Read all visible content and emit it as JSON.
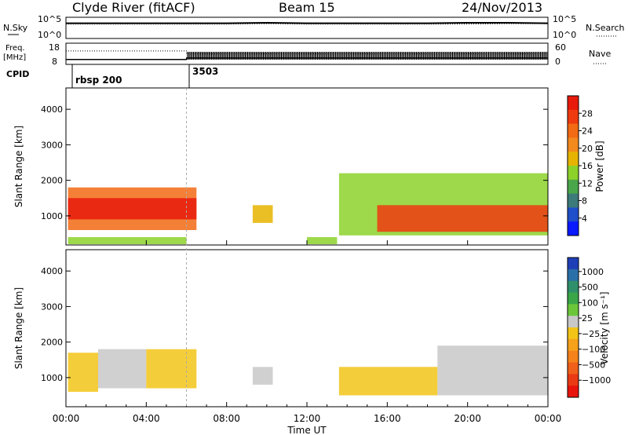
{
  "header": {
    "station": "Clyde River (fitACF)",
    "beam": "Beam 15",
    "date": "24/Nov/2013"
  },
  "noise_panel": {
    "left_label": "N.Sky",
    "left_ticks": [
      "10^5",
      "10^0"
    ],
    "right_ticks": [
      "10^5",
      "10^0"
    ],
    "right_label": "N.Search"
  },
  "freq_panel": {
    "left_label_line1": "Freq.",
    "left_label_line2": "[MHz]",
    "left_ticks": [
      "18",
      "8"
    ],
    "right_ticks": [
      "60",
      "0"
    ],
    "right_label": "Nave"
  },
  "cpid_panel": {
    "label": "CPID",
    "entries": [
      {
        "text": "rbsp 200",
        "start_hour": 0
      },
      {
        "text": "3503",
        "start_hour": 6
      }
    ]
  },
  "x_axis": {
    "label": "Time UT",
    "ticks": [
      "00:00",
      "04:00",
      "08:00",
      "12:00",
      "16:00",
      "20:00",
      "00:00"
    ]
  },
  "range_panels": {
    "ylabel": "Slant Range [km]",
    "yticks": [
      "1000",
      "2000",
      "3000",
      "4000"
    ]
  },
  "power_colorbar": {
    "label": "Power [dB]",
    "ticks": [
      "4",
      "8",
      "12",
      "16",
      "20",
      "24",
      "28"
    ],
    "colors": [
      "#0a1aff",
      "#1f4fc9",
      "#3d7a7a",
      "#4aa64a",
      "#8cd22a",
      "#e6b400",
      "#f28a1e",
      "#f26a14",
      "#ef3a10",
      "#e81a0c"
    ]
  },
  "velocity_colorbar": {
    "label": "Velocity [m s⁻¹]",
    "ticks": [
      "1000",
      "500",
      "100",
      "25",
      "−25",
      "−100",
      "−500",
      "−1000"
    ],
    "colors": [
      "#1f3fb8",
      "#2a6fa8",
      "#2f8f6a",
      "#3aa648",
      "#6cc63a",
      "#c8c8c8",
      "#f2c418",
      "#f5a11a",
      "#f5821a",
      "#f0601a",
      "#ea3a14",
      "#e8140c"
    ]
  },
  "chart_data": [
    {
      "type": "line",
      "title": "Clyde River (fitACF)",
      "xlabel": "",
      "ylabel": "N.Sky",
      "x": [
        0,
        2,
        4,
        6,
        8,
        10,
        12,
        14,
        16,
        18,
        20,
        22,
        24
      ],
      "series": [
        {
          "name": "N.Sky",
          "values": [
            3.6,
            3.6,
            3.6,
            3.6,
            3.6,
            3.7,
            3.6,
            3.6,
            3.6,
            3.6,
            3.7,
            3.7,
            3.6
          ]
        },
        {
          "name": "N.Search",
          "values": [
            3.4,
            3.4,
            3.4,
            3.4,
            3.4,
            3.5,
            3.4,
            3.4,
            3.4,
            3.4,
            3.4,
            3.5,
            3.5
          ]
        }
      ],
      "ylim": [
        0,
        5
      ]
    },
    {
      "type": "line",
      "xlabel": "",
      "ylabel": "Freq. [MHz]",
      "x": [
        0,
        6,
        6.01,
        24
      ],
      "series": [
        {
          "name": "Freq.",
          "values": [
            10.3,
            10.3,
            11,
            11
          ]
        },
        {
          "name": "Nave",
          "values": [
            38,
            38,
            30,
            30
          ]
        }
      ],
      "ylim": [
        8,
        18
      ]
    },
    {
      "type": "heatmap",
      "xlabel": "Time UT",
      "ylabel": "Slant Range [km]",
      "xlim": [
        0,
        24
      ],
      "ylim": [
        180,
        4600
      ],
      "colorbar": "Power [dB]",
      "clim": [
        0,
        30
      ],
      "regions": [
        {
          "x0": 0.1,
          "x1": 6.5,
          "y0": 600,
          "y1": 1800,
          "value": 22
        },
        {
          "x0": 0.1,
          "x1": 6.5,
          "y0": 900,
          "y1": 1500,
          "value": 27
        },
        {
          "x0": 0.1,
          "x1": 6.0,
          "y0": 200,
          "y1": 400,
          "value": 14
        },
        {
          "x0": 13.6,
          "x1": 24.0,
          "y0": 450,
          "y1": 2200,
          "value": 14
        },
        {
          "x0": 15.5,
          "x1": 24.0,
          "y0": 550,
          "y1": 1300,
          "value": 26
        },
        {
          "x0": 9.3,
          "x1": 10.3,
          "y0": 800,
          "y1": 1300,
          "value": 16
        },
        {
          "x0": 12.0,
          "x1": 13.5,
          "y0": 200,
          "y1": 400,
          "value": 12
        }
      ]
    },
    {
      "type": "heatmap",
      "xlabel": "Time UT",
      "ylabel": "Slant Range [km]",
      "xlim": [
        0,
        24
      ],
      "ylim": [
        180,
        4600
      ],
      "colorbar": "Velocity [m s⁻¹]",
      "clim": [
        -1000,
        1000
      ],
      "regions": [
        {
          "x0": 0.1,
          "x1": 1.6,
          "y0": 600,
          "y1": 1700,
          "value": -120
        },
        {
          "x0": 1.6,
          "x1": 4.0,
          "y0": 700,
          "y1": 1800,
          "value": 60
        },
        {
          "x0": 4.0,
          "x1": 6.5,
          "y0": 700,
          "y1": 1800,
          "value": -80
        },
        {
          "x0": 13.6,
          "x1": 18.5,
          "y0": 500,
          "y1": 1300,
          "value": -150
        },
        {
          "x0": 18.5,
          "x1": 24.0,
          "y0": 500,
          "y1": 1900,
          "value": 90
        },
        {
          "x0": 9.3,
          "x1": 10.3,
          "y0": 800,
          "y1": 1300,
          "value": 40
        }
      ]
    }
  ]
}
